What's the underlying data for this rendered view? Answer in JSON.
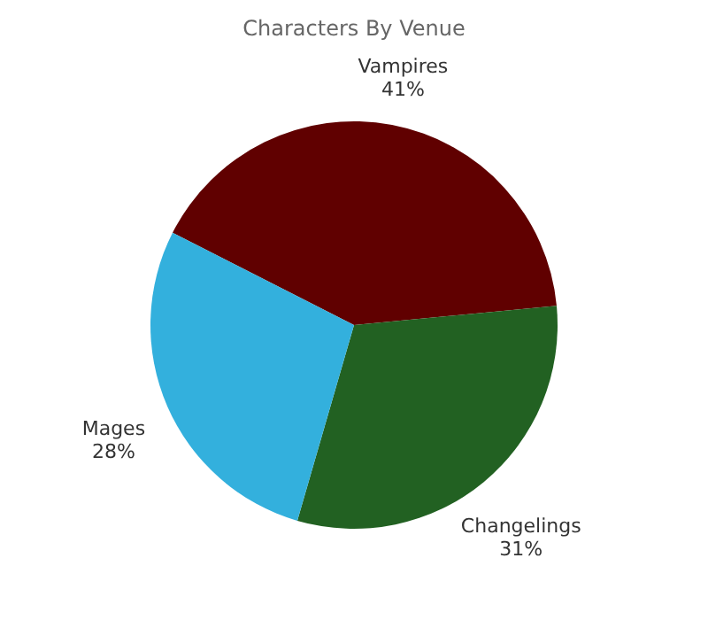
{
  "chart_data": {
    "type": "pie",
    "title": "Characters By Venue",
    "categories": [
      "Vampires",
      "Changelings",
      "Mages"
    ],
    "values": [
      41,
      31,
      28
    ],
    "colors": [
      "#600000",
      "#226122",
      "#33b0dd"
    ],
    "value_labels": [
      "41%",
      "31%",
      "28%"
    ],
    "legend": false
  }
}
